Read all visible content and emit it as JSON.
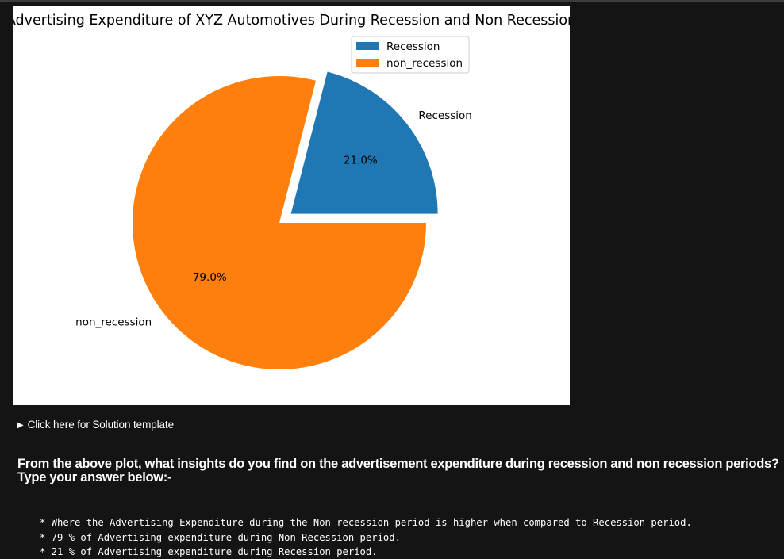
{
  "chart_data": {
    "type": "pie",
    "title": "Advertising Expenditure of XYZ Automotives During Recession and Non Recession",
    "labels": [
      "Recession",
      "non_recession"
    ],
    "values": [
      21.0,
      79.0
    ],
    "percent_labels": [
      "21.0%",
      "79.0%"
    ],
    "colors": [
      "#1f77b4",
      "#ff7f0e"
    ],
    "explode": [
      0.1,
      0
    ],
    "start_angle_deg": 0,
    "legend": {
      "placement": "top-right",
      "entries": [
        "Recession",
        "non_recession"
      ]
    }
  },
  "details_summary": {
    "marker": "▶",
    "label": "Click here for Solution template"
  },
  "question": {
    "line1": "From the above plot, what insights do you find on the advertisement expenditure during recession and non recession periods?",
    "line2": "Type your answer below:-"
  },
  "answer_lines": [
    "* Where the Advertising Expenditure during the Non recession period is higher when compared to Recession period.",
    "* 79 % of Advertising expenditure during Non Recession period.",
    "* 21 % of Advertising expenditure during Recession period."
  ]
}
